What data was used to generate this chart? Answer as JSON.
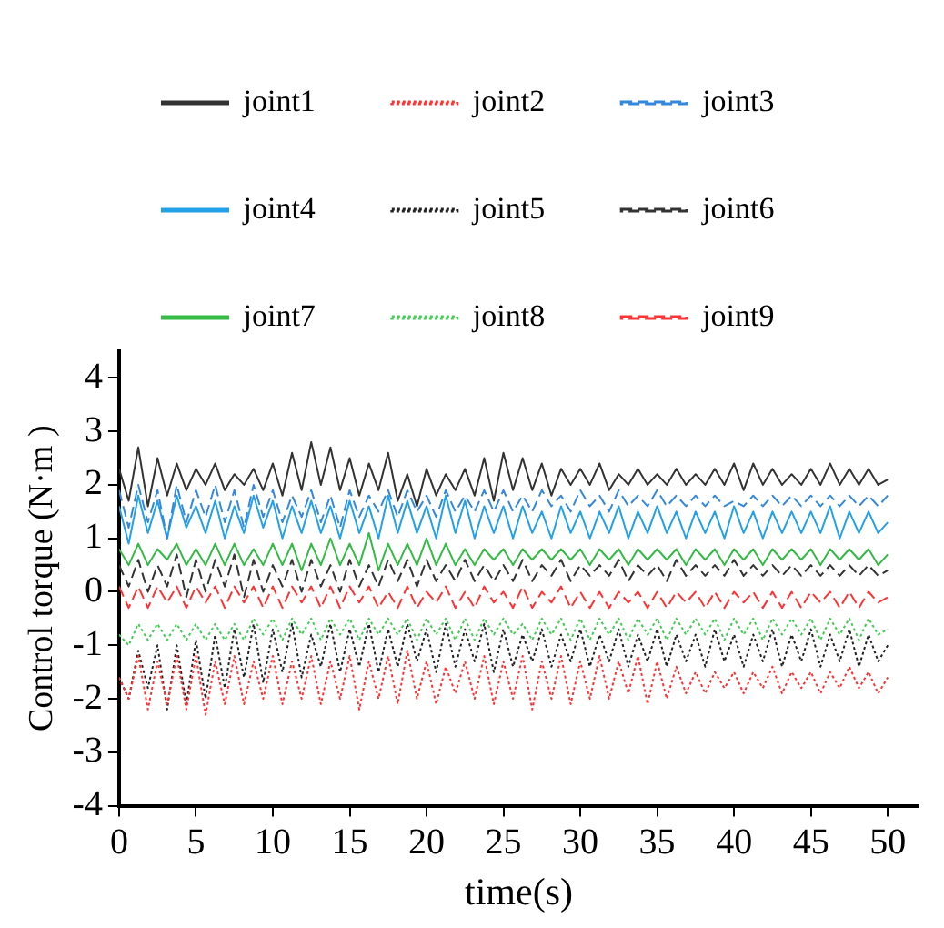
{
  "chart_data": {
    "type": "line",
    "xlabel": "time(s)",
    "ylabel": "Control torque (N·m )",
    "xlim": [
      0,
      52
    ],
    "ylim": [
      -4,
      4.5
    ],
    "xticks": [
      0,
      5,
      10,
      15,
      20,
      25,
      30,
      35,
      40,
      45,
      50
    ],
    "yticks": [
      -4,
      -3,
      -2,
      -1,
      0,
      1,
      2,
      3,
      4
    ],
    "grid": false,
    "legend": "top",
    "marker": "none",
    "x": [
      0,
      0.625,
      1.25,
      1.875,
      2.5,
      3.125,
      3.75,
      4.375,
      5,
      5.625,
      6.25,
      6.875,
      7.5,
      8.125,
      8.75,
      9.375,
      10,
      10.625,
      11.25,
      11.875,
      12.5,
      13.125,
      13.75,
      14.375,
      15,
      15.625,
      16.25,
      16.875,
      17.5,
      18.125,
      18.75,
      19.375,
      20,
      20.625,
      21.25,
      21.875,
      22.5,
      23.125,
      23.75,
      24.375,
      25,
      25.625,
      26.25,
      26.875,
      27.5,
      28.125,
      28.75,
      29.375,
      30,
      30.625,
      31.25,
      31.875,
      32.5,
      33.125,
      33.75,
      34.375,
      35,
      35.625,
      36.25,
      36.875,
      37.5,
      38.125,
      38.75,
      39.375,
      40,
      40.625,
      41.25,
      41.875,
      42.5,
      43.125,
      43.75,
      44.375,
      45,
      45.625,
      46.25,
      46.875,
      47.5,
      48.125,
      48.75,
      49.375,
      50
    ],
    "series": [
      {
        "name": "joint1",
        "color": "#333333",
        "line_style": "solid",
        "values": [
          2.3,
          1.7,
          2.7,
          1.6,
          2.5,
          1.8,
          2.4,
          1.9,
          2.3,
          2.0,
          2.4,
          1.9,
          2.2,
          2.0,
          2.3,
          1.9,
          2.4,
          1.8,
          2.6,
          1.9,
          2.8,
          2.0,
          2.7,
          1.9,
          2.5,
          1.8,
          2.4,
          1.9,
          2.6,
          1.7,
          2.2,
          1.6,
          2.3,
          1.8,
          2.2,
          1.9,
          2.3,
          1.8,
          2.5,
          1.7,
          2.6,
          1.9,
          2.5,
          1.9,
          2.4,
          1.8,
          2.3,
          2.0,
          2.3,
          2.0,
          2.4,
          1.9,
          2.2,
          2.0,
          2.3,
          2.0,
          2.2,
          2.0,
          2.3,
          2.0,
          2.2,
          2.0,
          2.3,
          2.0,
          2.4,
          1.9,
          2.4,
          2.0,
          2.3,
          2.0,
          2.2,
          2.0,
          2.3,
          2.0,
          2.4,
          2.0,
          2.3,
          2.0,
          2.3,
          2.0,
          2.1
        ]
      },
      {
        "name": "joint2",
        "color": "#ff3333",
        "line_style": "dotted",
        "values": [
          -1.6,
          -2.0,
          -1.2,
          -2.2,
          -1.3,
          -2.1,
          -1.2,
          -2.2,
          -1.2,
          -2.3,
          -1.3,
          -2.1,
          -1.2,
          -2.1,
          -1.3,
          -2.0,
          -1.2,
          -2.1,
          -1.3,
          -2.0,
          -1.2,
          -2.1,
          -1.3,
          -2.0,
          -1.2,
          -2.2,
          -1.3,
          -2.0,
          -1.2,
          -2.1,
          -1.1,
          -2.0,
          -1.3,
          -2.1,
          -1.4,
          -1.9,
          -1.3,
          -2.0,
          -1.2,
          -2.1,
          -1.3,
          -2.0,
          -1.2,
          -2.2,
          -1.3,
          -2.0,
          -1.2,
          -2.1,
          -1.3,
          -2.0,
          -1.2,
          -2.0,
          -1.3,
          -1.9,
          -1.2,
          -2.1,
          -1.3,
          -2.0,
          -1.4,
          -1.9,
          -1.5,
          -1.9,
          -1.5,
          -1.8,
          -1.5,
          -1.9,
          -1.5,
          -1.8,
          -1.4,
          -1.9,
          -1.5,
          -1.8,
          -1.5,
          -1.9,
          -1.5,
          -1.8,
          -1.4,
          -1.8,
          -1.5,
          -1.9,
          -1.6
        ]
      },
      {
        "name": "joint3",
        "color": "#3388dd",
        "line_style": "dashed",
        "values": [
          1.9,
          1.2,
          2.0,
          1.3,
          1.9,
          1.0,
          2.0,
          1.3,
          1.9,
          1.4,
          2.0,
          1.3,
          1.9,
          1.2,
          2.0,
          1.4,
          1.9,
          1.3,
          1.8,
          1.4,
          1.9,
          1.3,
          1.8,
          1.2,
          1.9,
          1.4,
          1.8,
          1.5,
          1.9,
          1.4,
          1.9,
          1.5,
          1.8,
          1.4,
          1.9,
          1.5,
          1.8,
          1.5,
          1.9,
          1.5,
          1.9,
          1.5,
          1.8,
          1.5,
          1.9,
          1.6,
          1.8,
          1.5,
          1.9,
          1.6,
          1.8,
          1.5,
          1.9,
          1.6,
          1.8,
          1.6,
          1.9,
          1.6,
          1.8,
          1.6,
          1.8,
          1.6,
          1.8,
          1.6,
          1.7,
          1.6,
          1.8,
          1.6,
          1.8,
          1.6,
          1.8,
          1.6,
          1.8,
          1.6,
          1.8,
          1.6,
          1.8,
          1.6,
          1.8,
          1.6,
          1.8
        ]
      },
      {
        "name": "joint4",
        "color": "#22a0e8",
        "line_style": "solid",
        "values": [
          1.6,
          0.9,
          1.8,
          1.1,
          1.7,
          1.0,
          1.8,
          1.2,
          1.6,
          1.1,
          1.7,
          1.0,
          1.6,
          1.1,
          1.8,
          1.2,
          1.7,
          1.0,
          1.6,
          1.1,
          1.7,
          1.1,
          1.6,
          1.0,
          1.7,
          1.1,
          1.6,
          1.0,
          1.8,
          1.1,
          1.7,
          1.1,
          1.6,
          1.0,
          1.8,
          1.1,
          1.7,
          1.0,
          1.6,
          1.1,
          1.6,
          1.0,
          1.6,
          1.1,
          1.5,
          1.0,
          1.6,
          1.1,
          1.5,
          1.0,
          1.5,
          1.1,
          1.6,
          1.0,
          1.5,
          1.1,
          1.6,
          1.1,
          1.5,
          1.0,
          1.5,
          1.1,
          1.5,
          1.0,
          1.6,
          1.1,
          1.5,
          1.0,
          1.5,
          1.1,
          1.5,
          1.1,
          1.5,
          1.1,
          1.6,
          1.0,
          1.5,
          1.1,
          1.5,
          1.1,
          1.3
        ]
      },
      {
        "name": "joint5",
        "color": "#222222",
        "line_style": "dotted",
        "values": [
          -1.6,
          -2.0,
          -1.1,
          -1.8,
          -1.0,
          -2.2,
          -1.0,
          -2.1,
          -0.9,
          -2.0,
          -0.8,
          -1.8,
          -0.7,
          -1.6,
          -0.6,
          -1.7,
          -0.7,
          -1.5,
          -0.6,
          -1.6,
          -0.8,
          -1.4,
          -0.6,
          -1.5,
          -0.7,
          -1.4,
          -0.6,
          -1.5,
          -0.7,
          -1.4,
          -0.6,
          -1.3,
          -0.7,
          -1.5,
          -0.6,
          -1.4,
          -0.7,
          -1.3,
          -0.6,
          -1.5,
          -0.7,
          -1.4,
          -0.8,
          -1.3,
          -0.7,
          -1.4,
          -0.8,
          -1.3,
          -0.7,
          -1.4,
          -0.8,
          -1.3,
          -0.7,
          -1.4,
          -0.8,
          -1.3,
          -0.7,
          -1.4,
          -0.8,
          -1.3,
          -0.8,
          -1.4,
          -0.7,
          -1.3,
          -0.8,
          -1.4,
          -0.8,
          -1.3,
          -0.7,
          -1.4,
          -0.8,
          -1.3,
          -0.7,
          -1.4,
          -0.8,
          -1.3,
          -0.7,
          -1.4,
          -0.8,
          -1.3,
          -1.0
        ]
      },
      {
        "name": "joint6",
        "color": "#333333",
        "line_style": "dashed",
        "values": [
          0.5,
          0.1,
          0.6,
          0.0,
          0.5,
          0.1,
          0.7,
          -0.1,
          0.6,
          0.0,
          0.6,
          0.1,
          0.7,
          -0.1,
          0.6,
          0.0,
          0.5,
          0.1,
          0.6,
          0.0,
          0.6,
          0.1,
          0.5,
          0.0,
          0.6,
          0.1,
          0.5,
          0.1,
          0.6,
          0.2,
          0.6,
          0.1,
          0.6,
          0.2,
          0.5,
          0.2,
          0.6,
          0.2,
          0.5,
          0.2,
          0.5,
          0.2,
          0.6,
          0.2,
          0.5,
          0.3,
          0.6,
          0.2,
          0.5,
          0.3,
          0.5,
          0.3,
          0.6,
          0.2,
          0.5,
          0.3,
          0.5,
          0.2,
          0.6,
          0.3,
          0.5,
          0.3,
          0.5,
          0.3,
          0.6,
          0.3,
          0.5,
          0.3,
          0.5,
          0.3,
          0.5,
          0.3,
          0.5,
          0.3,
          0.5,
          0.3,
          0.5,
          0.3,
          0.5,
          0.3,
          0.4
        ]
      },
      {
        "name": "joint7",
        "color": "#33bb44",
        "line_style": "solid",
        "values": [
          0.8,
          0.5,
          0.9,
          0.5,
          0.8,
          0.6,
          0.9,
          0.5,
          0.8,
          0.5,
          0.9,
          0.5,
          0.9,
          0.5,
          0.8,
          0.5,
          0.9,
          0.5,
          0.9,
          0.4,
          0.9,
          0.5,
          1.0,
          0.5,
          0.9,
          0.5,
          1.1,
          0.4,
          0.9,
          0.5,
          0.9,
          0.5,
          1.0,
          0.5,
          0.9,
          0.5,
          0.8,
          0.5,
          0.8,
          0.6,
          0.8,
          0.5,
          0.8,
          0.6,
          0.8,
          0.6,
          0.8,
          0.6,
          0.8,
          0.5,
          0.8,
          0.6,
          0.8,
          0.5,
          0.8,
          0.6,
          0.8,
          0.6,
          0.8,
          0.5,
          0.8,
          0.6,
          0.8,
          0.5,
          0.8,
          0.6,
          0.8,
          0.5,
          0.8,
          0.6,
          0.8,
          0.6,
          0.8,
          0.5,
          0.8,
          0.6,
          0.8,
          0.6,
          0.8,
          0.5,
          0.7
        ]
      },
      {
        "name": "joint8",
        "color": "#44cc55",
        "line_style": "dotted",
        "values": [
          -0.8,
          -1.0,
          -0.6,
          -0.9,
          -0.6,
          -0.9,
          -0.6,
          -0.9,
          -0.6,
          -0.9,
          -0.6,
          -0.9,
          -0.6,
          -0.9,
          -0.5,
          -0.8,
          -0.5,
          -0.9,
          -0.5,
          -0.8,
          -0.5,
          -0.9,
          -0.5,
          -0.8,
          -0.5,
          -0.9,
          -0.5,
          -0.8,
          -0.5,
          -0.8,
          -0.5,
          -0.9,
          -0.5,
          -0.8,
          -0.5,
          -0.9,
          -0.5,
          -0.9,
          -0.5,
          -0.8,
          -0.5,
          -0.8,
          -0.6,
          -0.9,
          -0.5,
          -0.8,
          -0.5,
          -0.9,
          -0.5,
          -0.9,
          -0.5,
          -0.8,
          -0.5,
          -0.9,
          -0.5,
          -0.8,
          -0.5,
          -0.9,
          -0.5,
          -0.8,
          -0.5,
          -0.8,
          -0.5,
          -0.9,
          -0.5,
          -0.8,
          -0.5,
          -0.9,
          -0.5,
          -0.8,
          -0.5,
          -0.8,
          -0.5,
          -0.9,
          -0.5,
          -0.8,
          -0.5,
          -0.9,
          -0.5,
          -0.8,
          -0.7
        ]
      },
      {
        "name": "joint9",
        "color": "#ff3333",
        "line_style": "dashed",
        "values": [
          0.1,
          -0.3,
          0.1,
          -0.3,
          0.1,
          -0.2,
          0.1,
          -0.3,
          0.1,
          -0.2,
          0.1,
          -0.3,
          0.1,
          -0.2,
          0.1,
          -0.3,
          0.1,
          -0.3,
          0.1,
          -0.2,
          0.1,
          -0.3,
          0.1,
          -0.3,
          0.1,
          -0.2,
          0.1,
          -0.3,
          0.0,
          -0.3,
          0.1,
          -0.3,
          0.0,
          -0.2,
          0.1,
          -0.3,
          0.0,
          -0.3,
          0.1,
          -0.2,
          0.0,
          -0.3,
          0.1,
          -0.3,
          0.0,
          -0.2,
          0.1,
          -0.3,
          0.0,
          -0.3,
          0.0,
          -0.3,
          0.0,
          -0.2,
          0.0,
          -0.3,
          0.0,
          -0.3,
          0.0,
          -0.2,
          0.0,
          -0.3,
          0.0,
          -0.3,
          0.0,
          -0.2,
          0.0,
          -0.3,
          0.0,
          -0.3,
          0.0,
          -0.3,
          0.0,
          -0.2,
          0.0,
          -0.3,
          0.0,
          -0.3,
          0.0,
          -0.2,
          -0.1
        ]
      }
    ]
  }
}
